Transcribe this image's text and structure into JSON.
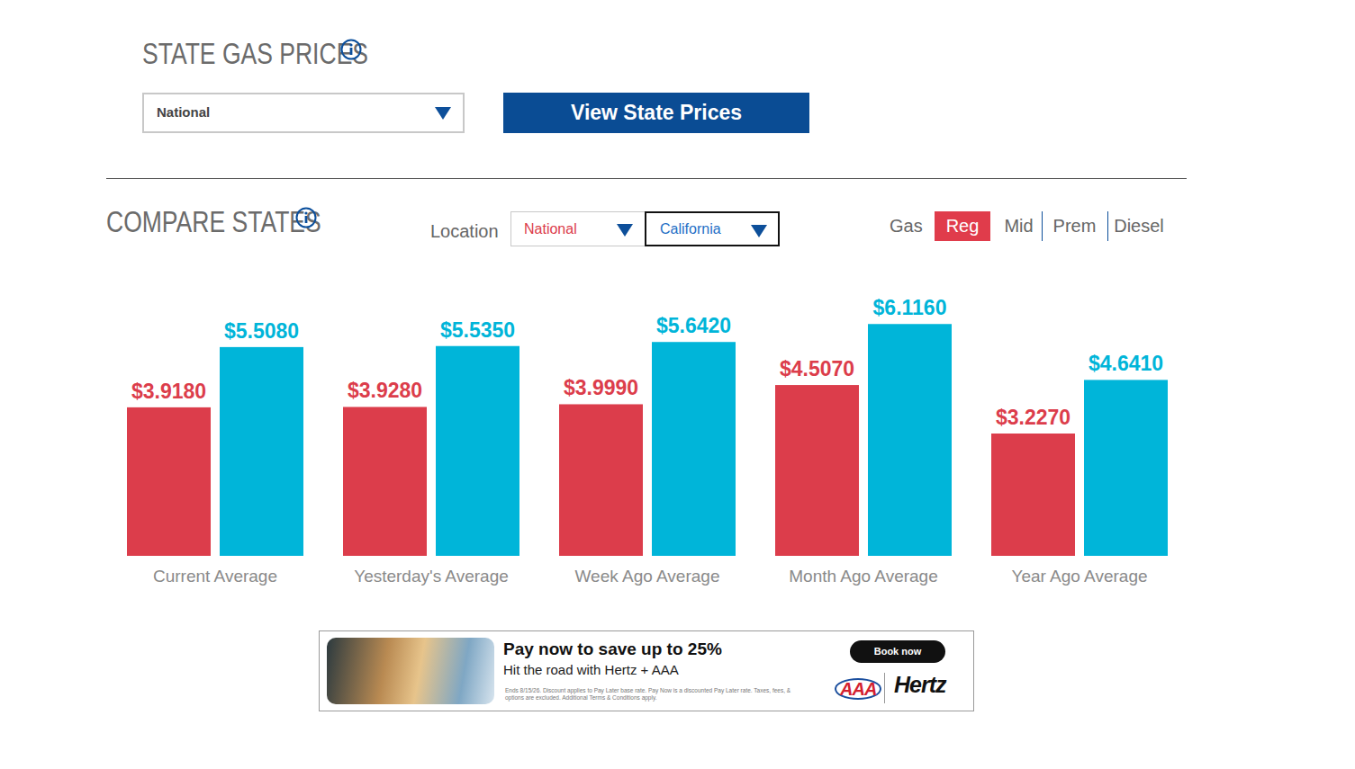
{
  "page": {
    "title": "STATE GAS PRICES",
    "state_select": "National",
    "button": "View State Prices",
    "compare_title": "COMPARE STATES",
    "location_label": "Location",
    "gas_label": "Gas",
    "grades": [
      "Reg",
      "Mid",
      "Prem",
      "Diesel"
    ],
    "active_grade": "Reg",
    "ad": {
      "headline": "Pay now to save up to 25%",
      "sub": "Hit the road with Hertz + AAA",
      "fine": "Ends 8/15/26. Discount applies to Pay Later base rate. Pay Now is a discounted Pay Later rate. Taxes, fees, & options are excluded. Additional Terms & Conditions apply.",
      "cta": "Book now",
      "brand1": "AAA",
      "brand2": "Hertz"
    }
  },
  "chart_data": {
    "type": "bar",
    "categories": [
      "Current Average",
      "Yesterday's Average",
      "Week Ago Average",
      "Month Ago Average",
      "Year Ago Average"
    ],
    "series": [
      {
        "name": "National",
        "color": "#dc3d4b",
        "values": [
          3.918,
          3.928,
          3.999,
          4.507,
          3.227
        ],
        "value_labels": [
          "$3.9180",
          "$3.9280",
          "$3.9990",
          "$4.5070",
          "$3.2270"
        ]
      },
      {
        "name": "California",
        "color": "#00b5d9",
        "values": [
          5.508,
          5.535,
          5.642,
          6.116,
          4.641
        ],
        "value_labels": [
          "$5.5080",
          "$5.5350",
          "$5.6420",
          "$6.1160",
          "$4.6410"
        ]
      }
    ],
    "ylim": [
      0,
      7
    ],
    "data_labels": true,
    "tick_labels": "x",
    "legend": "top"
  }
}
